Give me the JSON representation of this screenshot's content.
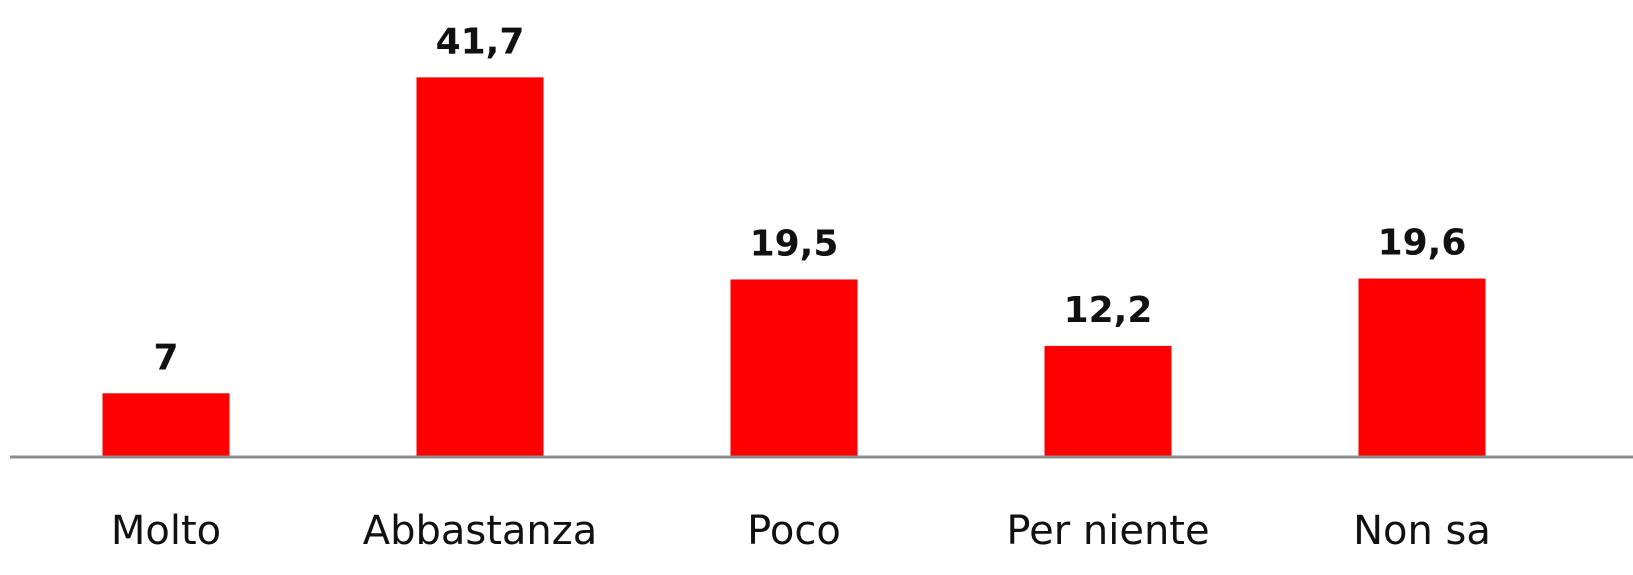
{
  "chart_data": {
    "type": "bar",
    "categories": [
      "Molto",
      "Abbastanza",
      "Poco",
      "Per niente",
      "Non sa"
    ],
    "values": [
      7,
      41.7,
      19.5,
      12.2,
      19.6
    ],
    "data_labels": [
      "7",
      "41,7",
      "19,5",
      "12,2",
      "19,6"
    ],
    "title": "",
    "xlabel": "",
    "ylabel": "",
    "ylim": [
      0,
      48
    ],
    "grid": false,
    "legend": "none",
    "colors": {
      "bar": "#ff0000",
      "axis": "#8c8c8c",
      "text": "#111111"
    }
  }
}
